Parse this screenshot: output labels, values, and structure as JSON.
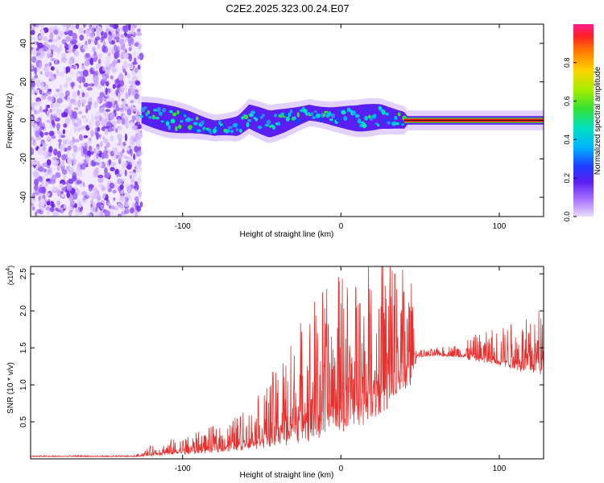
{
  "title": "C2E2.2025.323.00.24.E07",
  "chart_data": [
    {
      "type": "heatmap",
      "name": "spectrogram",
      "xlabel": "Height of straight line (km)",
      "ylabel": "Frequency (Hz)",
      "xlim": [
        -196,
        128
      ],
      "ylim": [
        -50,
        50
      ],
      "xticks": [
        -100,
        0,
        100
      ],
      "xtick_labels": [
        "-100",
        "0",
        "100"
      ],
      "yticks": [
        -40,
        -20,
        0,
        20,
        40
      ],
      "ytick_labels": [
        "-40",
        "-20",
        "0",
        "20",
        "40"
      ],
      "noise_region_x": [
        -196,
        -126
      ],
      "signal_center_freq": [
        {
          "x": -126,
          "f": 4
        },
        {
          "x": -110,
          "f": 1
        },
        {
          "x": -95,
          "f": -1
        },
        {
          "x": -80,
          "f": -4
        },
        {
          "x": -65,
          "f": -3
        },
        {
          "x": -58,
          "f": 2
        },
        {
          "x": -45,
          "f": -2
        },
        {
          "x": -35,
          "f": 0
        },
        {
          "x": -20,
          "f": 4
        },
        {
          "x": -5,
          "f": 2
        },
        {
          "x": 10,
          "f": 1
        },
        {
          "x": 25,
          "f": 2
        },
        {
          "x": 40,
          "f": 0
        },
        {
          "x": 128,
          "f": 0
        }
      ],
      "colorbar": {
        "label": "Normalized spectral amplitude",
        "range": [
          0,
          1
        ],
        "ticks": [
          0.0,
          0.2,
          0.4,
          0.6,
          0.8
        ],
        "tick_labels": [
          "0.0",
          "0.2",
          "0.4",
          "0.6",
          "0.8"
        ]
      }
    },
    {
      "type": "line",
      "name": "snr",
      "xlabel": "Height of straight line (km)",
      "ylabel": "SNR (10 * v/v)",
      "y_multiplier": "(x10",
      "y_multiplier_exp": "4",
      "y_multiplier_close": ")",
      "xlim": [
        -196,
        128
      ],
      "ylim": [
        0,
        2.6
      ],
      "xticks": [
        -100,
        0,
        100
      ],
      "xtick_labels": [
        "-100",
        "0",
        "100"
      ],
      "yticks": [
        0.5,
        1.0,
        1.5,
        2.0,
        2.5
      ],
      "ytick_labels": [
        "0.5",
        "1.0",
        "1.5",
        "2.0",
        "2.5"
      ],
      "color": "#e8302e",
      "envelope": [
        {
          "x": -196,
          "base": 0.03,
          "spread": 0.01
        },
        {
          "x": -130,
          "base": 0.03,
          "spread": 0.01
        },
        {
          "x": -120,
          "base": 0.05,
          "spread": 0.08
        },
        {
          "x": -95,
          "base": 0.08,
          "spread": 0.16
        },
        {
          "x": -75,
          "base": 0.12,
          "spread": 0.22
        },
        {
          "x": -55,
          "base": 0.18,
          "spread": 0.35
        },
        {
          "x": -40,
          "base": 0.25,
          "spread": 0.65
        },
        {
          "x": -25,
          "base": 0.35,
          "spread": 1.0
        },
        {
          "x": -10,
          "base": 0.45,
          "spread": 1.2
        },
        {
          "x": 5,
          "base": 0.55,
          "spread": 1.25
        },
        {
          "x": 20,
          "base": 0.7,
          "spread": 1.3
        },
        {
          "x": 32,
          "base": 0.8,
          "spread": 1.3
        },
        {
          "x": 44,
          "base": 1.1,
          "spread": 0.9
        },
        {
          "x": 48,
          "base": 1.38,
          "spread": 0.05
        },
        {
          "x": 60,
          "base": 1.4,
          "spread": 0.06
        },
        {
          "x": 75,
          "base": 1.38,
          "spread": 0.12
        },
        {
          "x": 90,
          "base": 1.32,
          "spread": 0.25
        },
        {
          "x": 110,
          "base": 1.25,
          "spread": 0.4
        },
        {
          "x": 128,
          "base": 1.2,
          "spread": 0.5
        }
      ],
      "peaks": [
        {
          "x": 31,
          "y": 2.6
        },
        {
          "x": 34,
          "y": 2.5
        },
        {
          "x": 26,
          "y": 2.45
        },
        {
          "x": 0,
          "y": 2.1
        },
        {
          "x": 12,
          "y": 2.1
        },
        {
          "x": 18,
          "y": 2.3
        },
        {
          "x": -15,
          "y": 1.7
        },
        {
          "x": 40,
          "y": 1.9
        },
        {
          "x": 125,
          "y": 2.0
        }
      ]
    }
  ]
}
